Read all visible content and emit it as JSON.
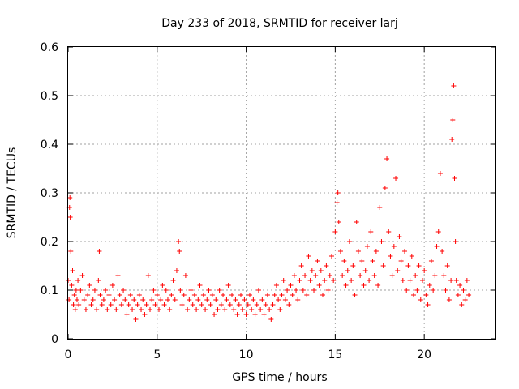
{
  "chart_data": {
    "type": "scatter",
    "title": "Day 233 of 2018, SRMTID for receiver larj",
    "xlabel": "GPS time / hours",
    "ylabel": "SRMTID / TECUs",
    "xlim": [
      0,
      24
    ],
    "ylim": [
      0,
      0.6
    ],
    "xticks": [
      "0",
      "5",
      "10",
      "15",
      "20"
    ],
    "yticks": [
      "0",
      "0.1",
      "0.2",
      "0.3",
      "0.4",
      "0.5",
      "0.6"
    ],
    "grid": true,
    "marker": "+",
    "series": [
      {
        "name": "SRMTID",
        "color": "#ff0000",
        "points": [
          [
            0.0,
            0.12
          ],
          [
            0.05,
            0.08
          ],
          [
            0.08,
            0.27
          ],
          [
            0.1,
            0.29
          ],
          [
            0.12,
            0.25
          ],
          [
            0.15,
            0.18
          ],
          [
            0.2,
            0.11
          ],
          [
            0.25,
            0.14
          ],
          [
            0.3,
            0.07
          ],
          [
            0.35,
            0.09
          ],
          [
            0.4,
            0.06
          ],
          [
            0.45,
            0.1
          ],
          [
            0.5,
            0.08
          ],
          [
            0.55,
            0.12
          ],
          [
            0.6,
            0.07
          ],
          [
            0.7,
            0.1
          ],
          [
            0.8,
            0.13
          ],
          [
            0.9,
            0.08
          ],
          [
            1.0,
            0.06
          ],
          [
            1.1,
            0.09
          ],
          [
            1.2,
            0.11
          ],
          [
            1.3,
            0.07
          ],
          [
            1.4,
            0.08
          ],
          [
            1.5,
            0.1
          ],
          [
            1.6,
            0.06
          ],
          [
            1.7,
            0.12
          ],
          [
            1.75,
            0.18
          ],
          [
            1.8,
            0.09
          ],
          [
            1.9,
            0.07
          ],
          [
            2.0,
            0.08
          ],
          [
            2.1,
            0.1
          ],
          [
            2.2,
            0.06
          ],
          [
            2.3,
            0.09
          ],
          [
            2.4,
            0.07
          ],
          [
            2.5,
            0.11
          ],
          [
            2.6,
            0.08
          ],
          [
            2.7,
            0.06
          ],
          [
            2.8,
            0.13
          ],
          [
            2.9,
            0.09
          ],
          [
            3.0,
            0.07
          ],
          [
            3.1,
            0.1
          ],
          [
            3.2,
            0.08
          ],
          [
            3.3,
            0.05
          ],
          [
            3.4,
            0.07
          ],
          [
            3.5,
            0.09
          ],
          [
            3.6,
            0.06
          ],
          [
            3.7,
            0.08
          ],
          [
            3.8,
            0.04
          ],
          [
            3.9,
            0.07
          ],
          [
            4.0,
            0.09
          ],
          [
            4.1,
            0.06
          ],
          [
            4.2,
            0.08
          ],
          [
            4.3,
            0.05
          ],
          [
            4.4,
            0.07
          ],
          [
            4.5,
            0.13
          ],
          [
            4.6,
            0.06
          ],
          [
            4.7,
            0.08
          ],
          [
            4.8,
            0.1
          ],
          [
            4.9,
            0.07
          ],
          [
            5.0,
            0.09
          ],
          [
            5.1,
            0.06
          ],
          [
            5.2,
            0.08
          ],
          [
            5.3,
            0.11
          ],
          [
            5.4,
            0.07
          ],
          [
            5.5,
            0.1
          ],
          [
            5.6,
            0.08
          ],
          [
            5.7,
            0.06
          ],
          [
            5.8,
            0.09
          ],
          [
            5.9,
            0.12
          ],
          [
            6.0,
            0.08
          ],
          [
            6.1,
            0.14
          ],
          [
            6.2,
            0.2
          ],
          [
            6.25,
            0.18
          ],
          [
            6.3,
            0.1
          ],
          [
            6.4,
            0.07
          ],
          [
            6.5,
            0.09
          ],
          [
            6.6,
            0.13
          ],
          [
            6.7,
            0.06
          ],
          [
            6.8,
            0.08
          ],
          [
            6.9,
            0.1
          ],
          [
            7.0,
            0.07
          ],
          [
            7.1,
            0.09
          ],
          [
            7.2,
            0.06
          ],
          [
            7.3,
            0.08
          ],
          [
            7.4,
            0.11
          ],
          [
            7.5,
            0.07
          ],
          [
            7.6,
            0.09
          ],
          [
            7.7,
            0.06
          ],
          [
            7.8,
            0.08
          ],
          [
            7.9,
            0.1
          ],
          [
            8.0,
            0.07
          ],
          [
            8.1,
            0.09
          ],
          [
            8.2,
            0.05
          ],
          [
            8.3,
            0.08
          ],
          [
            8.4,
            0.06
          ],
          [
            8.5,
            0.1
          ],
          [
            8.6,
            0.07
          ],
          [
            8.7,
            0.09
          ],
          [
            8.8,
            0.06
          ],
          [
            8.9,
            0.08
          ],
          [
            9.0,
            0.11
          ],
          [
            9.1,
            0.07
          ],
          [
            9.2,
            0.09
          ],
          [
            9.3,
            0.06
          ],
          [
            9.4,
            0.08
          ],
          [
            9.5,
            0.05
          ],
          [
            9.6,
            0.07
          ],
          [
            9.7,
            0.09
          ],
          [
            9.8,
            0.06
          ],
          [
            9.9,
            0.08
          ],
          [
            10.0,
            0.05
          ],
          [
            10.1,
            0.07
          ],
          [
            10.2,
            0.09
          ],
          [
            10.3,
            0.06
          ],
          [
            10.4,
            0.08
          ],
          [
            10.5,
            0.05
          ],
          [
            10.6,
            0.07
          ],
          [
            10.7,
            0.1
          ],
          [
            10.8,
            0.06
          ],
          [
            10.9,
            0.08
          ],
          [
            11.0,
            0.05
          ],
          [
            11.1,
            0.07
          ],
          [
            11.2,
            0.09
          ],
          [
            11.3,
            0.06
          ],
          [
            11.4,
            0.04
          ],
          [
            11.5,
            0.07
          ],
          [
            11.6,
            0.09
          ],
          [
            11.7,
            0.11
          ],
          [
            11.8,
            0.08
          ],
          [
            11.9,
            0.06
          ],
          [
            12.0,
            0.09
          ],
          [
            12.1,
            0.12
          ],
          [
            12.2,
            0.08
          ],
          [
            12.3,
            0.1
          ],
          [
            12.4,
            0.07
          ],
          [
            12.5,
            0.11
          ],
          [
            12.6,
            0.09
          ],
          [
            12.7,
            0.13
          ],
          [
            12.8,
            0.1
          ],
          [
            12.9,
            0.08
          ],
          [
            13.0,
            0.12
          ],
          [
            13.1,
            0.15
          ],
          [
            13.2,
            0.1
          ],
          [
            13.3,
            0.13
          ],
          [
            13.4,
            0.09
          ],
          [
            13.5,
            0.17
          ],
          [
            13.6,
            0.12
          ],
          [
            13.7,
            0.14
          ],
          [
            13.8,
            0.1
          ],
          [
            13.9,
            0.13
          ],
          [
            14.0,
            0.16
          ],
          [
            14.1,
            0.11
          ],
          [
            14.2,
            0.14
          ],
          [
            14.3,
            0.09
          ],
          [
            14.4,
            0.12
          ],
          [
            14.5,
            0.15
          ],
          [
            14.6,
            0.1
          ],
          [
            14.7,
            0.13
          ],
          [
            14.8,
            0.17
          ],
          [
            14.9,
            0.12
          ],
          [
            15.0,
            0.22
          ],
          [
            15.1,
            0.28
          ],
          [
            15.15,
            0.3
          ],
          [
            15.2,
            0.24
          ],
          [
            15.3,
            0.18
          ],
          [
            15.4,
            0.13
          ],
          [
            15.5,
            0.16
          ],
          [
            15.6,
            0.11
          ],
          [
            15.7,
            0.14
          ],
          [
            15.8,
            0.2
          ],
          [
            15.9,
            0.12
          ],
          [
            16.0,
            0.15
          ],
          [
            16.1,
            0.09
          ],
          [
            16.2,
            0.24
          ],
          [
            16.3,
            0.18
          ],
          [
            16.4,
            0.13
          ],
          [
            16.5,
            0.16
          ],
          [
            16.6,
            0.11
          ],
          [
            16.7,
            0.14
          ],
          [
            16.8,
            0.19
          ],
          [
            16.9,
            0.12
          ],
          [
            17.0,
            0.22
          ],
          [
            17.1,
            0.16
          ],
          [
            17.2,
            0.13
          ],
          [
            17.3,
            0.18
          ],
          [
            17.4,
            0.11
          ],
          [
            17.5,
            0.27
          ],
          [
            17.6,
            0.2
          ],
          [
            17.7,
            0.15
          ],
          [
            17.8,
            0.31
          ],
          [
            17.9,
            0.37
          ],
          [
            18.0,
            0.22
          ],
          [
            18.1,
            0.17
          ],
          [
            18.2,
            0.13
          ],
          [
            18.3,
            0.19
          ],
          [
            18.4,
            0.33
          ],
          [
            18.5,
            0.14
          ],
          [
            18.6,
            0.21
          ],
          [
            18.7,
            0.16
          ],
          [
            18.8,
            0.12
          ],
          [
            18.9,
            0.18
          ],
          [
            19.0,
            0.1
          ],
          [
            19.1,
            0.15
          ],
          [
            19.2,
            0.12
          ],
          [
            19.3,
            0.17
          ],
          [
            19.4,
            0.09
          ],
          [
            19.5,
            0.13
          ],
          [
            19.6,
            0.1
          ],
          [
            19.7,
            0.15
          ],
          [
            19.8,
            0.08
          ],
          [
            19.9,
            0.12
          ],
          [
            20.0,
            0.14
          ],
          [
            20.1,
            0.09
          ],
          [
            20.2,
            0.07
          ],
          [
            20.3,
            0.11
          ],
          [
            20.4,
            0.16
          ],
          [
            20.5,
            0.1
          ],
          [
            20.6,
            0.13
          ],
          [
            20.7,
            0.19
          ],
          [
            20.8,
            0.22
          ],
          [
            20.9,
            0.34
          ],
          [
            21.0,
            0.18
          ],
          [
            21.1,
            0.13
          ],
          [
            21.2,
            0.1
          ],
          [
            21.3,
            0.15
          ],
          [
            21.4,
            0.08
          ],
          [
            21.5,
            0.12
          ],
          [
            21.55,
            0.41
          ],
          [
            21.6,
            0.45
          ],
          [
            21.65,
            0.52
          ],
          [
            21.7,
            0.33
          ],
          [
            21.75,
            0.2
          ],
          [
            21.8,
            0.12
          ],
          [
            21.9,
            0.09
          ],
          [
            22.0,
            0.11
          ],
          [
            22.1,
            0.07
          ],
          [
            22.2,
            0.1
          ],
          [
            22.3,
            0.08
          ],
          [
            22.4,
            0.12
          ],
          [
            22.5,
            0.09
          ]
        ]
      }
    ]
  }
}
